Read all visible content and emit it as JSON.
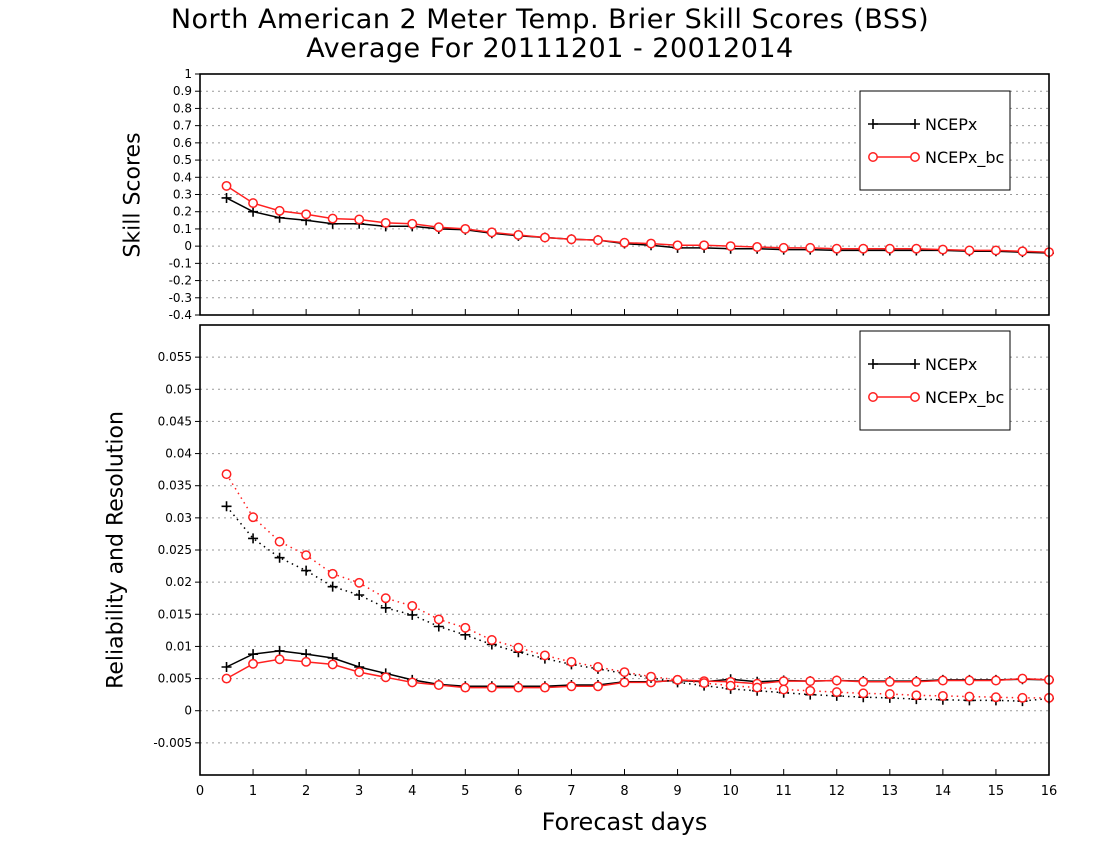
{
  "title_line1": "North American 2 Meter Temp. Brier Skill Scores (BSS)",
  "title_line2": "Average For 20111201 - 20012014",
  "chart_data": [
    {
      "type": "line",
      "ylabel": "Skill Scores",
      "xlabel": "",
      "xlim": [
        0,
        16
      ],
      "ylim": [
        -0.4,
        1
      ],
      "x_ticks": [
        "0",
        "1",
        "2",
        "3",
        "4",
        "5",
        "6",
        "7",
        "8",
        "9",
        "10",
        "11",
        "12",
        "13",
        "14",
        "15",
        "16"
      ],
      "y_ticks": [
        "-0.4",
        "-0.3",
        "-0.2",
        "-0.1",
        "0",
        "0.1",
        "0.2",
        "0.3",
        "0.4",
        "0.5",
        "0.6",
        "0.7",
        "0.8",
        "0.9",
        "1"
      ],
      "grid": true,
      "legend": "top-right",
      "x": [
        0.5,
        1,
        1.5,
        2,
        2.5,
        3,
        3.5,
        4,
        4.5,
        5,
        5.5,
        6,
        6.5,
        7,
        7.5,
        8,
        8.5,
        9,
        9.5,
        10,
        10.5,
        11,
        11.5,
        12,
        12.5,
        13,
        13.5,
        14,
        14.5,
        15,
        15.5,
        16
      ],
      "series": [
        {
          "name": "NCEPx",
          "color": "#000000",
          "marker": "plus",
          "style": "solid",
          "values": [
            0.28,
            0.2,
            0.165,
            0.15,
            0.13,
            0.13,
            0.115,
            0.115,
            0.1,
            0.095,
            0.075,
            0.06,
            0.05,
            0.04,
            0.035,
            0.015,
            0.005,
            -0.01,
            -0.01,
            -0.015,
            -0.015,
            -0.02,
            -0.02,
            -0.025,
            -0.025,
            -0.025,
            -0.025,
            -0.025,
            -0.03,
            -0.03,
            -0.035,
            -0.04
          ]
        },
        {
          "name": "NCEPx_bc",
          "color": "#ff2020",
          "marker": "circle",
          "style": "solid",
          "values": [
            0.35,
            0.25,
            0.205,
            0.185,
            0.16,
            0.155,
            0.135,
            0.13,
            0.11,
            0.1,
            0.08,
            0.065,
            0.05,
            0.04,
            0.035,
            0.02,
            0.015,
            0.005,
            0.005,
            0.0,
            -0.005,
            -0.01,
            -0.01,
            -0.015,
            -0.015,
            -0.015,
            -0.015,
            -0.02,
            -0.025,
            -0.025,
            -0.03,
            -0.035
          ]
        }
      ]
    },
    {
      "type": "line",
      "ylabel": "Reliability and Resolution",
      "xlabel": "Forecast days",
      "xlim": [
        0,
        16
      ],
      "ylim": [
        -0.01,
        0.06
      ],
      "x_ticks": [
        "0",
        "1",
        "2",
        "3",
        "4",
        "5",
        "6",
        "7",
        "8",
        "9",
        "10",
        "11",
        "12",
        "13",
        "14",
        "15",
        "16"
      ],
      "y_ticks": [
        "-0.005",
        "0",
        "0.005",
        "0.01",
        "0.015",
        "0.02",
        "0.025",
        "0.03",
        "0.035",
        "0.04",
        "0.045",
        "0.05",
        "0.055"
      ],
      "grid": true,
      "legend": "top-right",
      "x": [
        0.5,
        1,
        1.5,
        2,
        2.5,
        3,
        3.5,
        4,
        4.5,
        5,
        5.5,
        6,
        6.5,
        7,
        7.5,
        8,
        8.5,
        9,
        9.5,
        10,
        10.5,
        11,
        11.5,
        12,
        12.5,
        13,
        13.5,
        14,
        14.5,
        15,
        15.5,
        16
      ],
      "series": [
        {
          "name": "NCEPx",
          "color": "#000000",
          "marker": "plus",
          "style": "solid",
          "values": [
            0.0068,
            0.0088,
            0.0093,
            0.0088,
            0.0082,
            0.0068,
            0.0058,
            0.0048,
            0.0041,
            0.0038,
            0.0038,
            0.0038,
            0.0038,
            0.004,
            0.004,
            0.0045,
            0.0045,
            0.0047,
            0.0045,
            0.0049,
            0.0045,
            0.0047,
            0.0046,
            0.0047,
            0.0046,
            0.0046,
            0.0046,
            0.0048,
            0.0048,
            0.0048,
            0.0049,
            0.0048
          ]
        },
        {
          "name": "NCEPx_bc",
          "color": "#ff2020",
          "marker": "circle",
          "style": "solid",
          "values": [
            0.005,
            0.0073,
            0.008,
            0.0076,
            0.0072,
            0.006,
            0.0052,
            0.0044,
            0.004,
            0.0036,
            0.0036,
            0.0036,
            0.0036,
            0.0038,
            0.0038,
            0.0044,
            0.0044,
            0.0048,
            0.0046,
            0.0045,
            0.0042,
            0.0046,
            0.0046,
            0.0047,
            0.0045,
            0.0045,
            0.0045,
            0.0047,
            0.0047,
            0.0047,
            0.005,
            0.0048
          ]
        },
        {
          "name": "",
          "color": "#000000",
          "marker": "plus",
          "style": "dotted",
          "values": [
            0.0318,
            0.0268,
            0.0238,
            0.0218,
            0.0193,
            0.018,
            0.016,
            0.0149,
            0.0131,
            0.0118,
            0.0103,
            0.0091,
            0.0081,
            0.0072,
            0.0065,
            0.0058,
            0.0051,
            0.0044,
            0.0039,
            0.0034,
            0.0031,
            0.0028,
            0.0025,
            0.0023,
            0.0021,
            0.002,
            0.0018,
            0.0017,
            0.0016,
            0.0016,
            0.0015,
            0.0019
          ]
        },
        {
          "name": "",
          "color": "#ff2020",
          "marker": "circle",
          "style": "dotted",
          "values": [
            0.0368,
            0.0301,
            0.0263,
            0.0242,
            0.0213,
            0.0199,
            0.0175,
            0.0163,
            0.0142,
            0.0129,
            0.011,
            0.0098,
            0.0086,
            0.0076,
            0.0068,
            0.006,
            0.0053,
            0.0048,
            0.0043,
            0.0039,
            0.0036,
            0.0033,
            0.0031,
            0.0029,
            0.0027,
            0.0026,
            0.0024,
            0.0023,
            0.0022,
            0.0021,
            0.002,
            0.002
          ]
        }
      ]
    }
  ]
}
